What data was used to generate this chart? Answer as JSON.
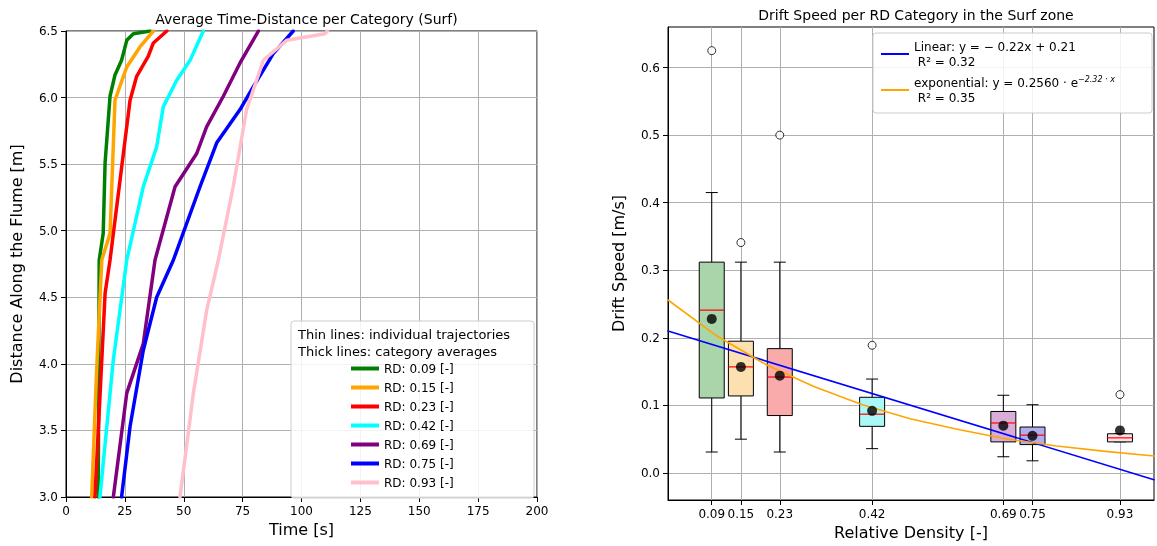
{
  "chart_data": [
    {
      "type": "line",
      "title": "Average Time-Distance per Category (Surf)",
      "xlabel": "Time [s]",
      "ylabel": "Distance Along the Flume [m]",
      "legend_title": "Thin lines: individual trajectories\nThick lines: category averages",
      "legend": "bottom right",
      "grid": true,
      "xlim": [
        0,
        200
      ],
      "xticks": [
        0,
        25,
        50,
        75,
        100,
        125,
        150,
        175,
        200
      ],
      "ylim": [
        3.0,
        6.5
      ],
      "yticks": [
        {
          "value": 3,
          "label": "3.0"
        },
        {
          "value": 3.5,
          "label": "3.5"
        },
        {
          "value": 4,
          "label": "4.0"
        },
        {
          "value": 4.5,
          "label": "4.5"
        },
        {
          "value": 5,
          "label": "5.0"
        },
        {
          "value": 5.5,
          "label": "5.5"
        },
        {
          "value": 6,
          "label": "6.0"
        },
        {
          "value": 6.5,
          "label": "6.5"
        }
      ],
      "series": [
        {
          "name": "RD: 0.09 [-]",
          "color": "#008000",
          "x": [
            13.7,
            14.1,
            15.8,
            16.6,
            18.7,
            20.8,
            23.6,
            25.8,
            28.6,
            35.7
          ],
          "values": [
            3.0,
            4.78,
            4.98,
            5.51,
            6.01,
            6.17,
            6.28,
            6.43,
            6.48,
            6.5
          ]
        },
        {
          "name": "RD: 0.15 [-]",
          "color": "#ffa500",
          "x": [
            10.9,
            13.0,
            15.2,
            18.7,
            20.8,
            25.8,
            31.4,
            37.1
          ],
          "values": [
            3.0,
            3.95,
            4.78,
            4.98,
            5.98,
            6.23,
            6.38,
            6.5
          ]
        },
        {
          "name": "RD: 0.23 [-]",
          "color": "#ff0000",
          "x": [
            12.3,
            16.6,
            18.7,
            27.2,
            30.0,
            34.9,
            37.1,
            42.8
          ],
          "values": [
            3.0,
            4.53,
            4.78,
            5.98,
            6.16,
            6.31,
            6.41,
            6.5
          ]
        },
        {
          "name": "RD: 0.42 [-]",
          "color": "#00ffff",
          "x": [
            14.4,
            20.1,
            25.8,
            32.8,
            38.5,
            41.3,
            47.0,
            52.7,
            58.3
          ],
          "values": [
            3.0,
            4.03,
            4.78,
            5.33,
            5.63,
            5.93,
            6.13,
            6.28,
            6.5
          ]
        },
        {
          "name": "RD: 0.69 [-]",
          "color": "#800080",
          "x": [
            20.1,
            25.8,
            32.8,
            37.8,
            46.3,
            55.5,
            59.7,
            66.8,
            73.9,
            81.7
          ],
          "values": [
            3.0,
            3.78,
            4.15,
            4.78,
            5.33,
            5.58,
            5.78,
            6.01,
            6.26,
            6.5
          ]
        },
        {
          "name": "RD: 0.75 [-]",
          "color": "#0000ff",
          "x": [
            23.6,
            27.2,
            32.8,
            38.5,
            45.6,
            56.9,
            64.0,
            73.9,
            79.5,
            88.0,
            96.5
          ],
          "values": [
            3.0,
            3.53,
            4.1,
            4.5,
            4.78,
            5.33,
            5.66,
            5.91,
            6.08,
            6.33,
            6.5
          ]
        },
        {
          "name": "RD: 0.93 [-]",
          "color": "#ffc0cb",
          "x": [
            48.4,
            54.1,
            59.7,
            64.7,
            71.0,
            76.7,
            83.8,
            93.7,
            110,
            111
          ],
          "values": [
            3.0,
            3.78,
            4.4,
            4.78,
            5.33,
            5.91,
            6.28,
            6.43,
            6.48,
            6.5
          ]
        }
      ]
    },
    {
      "type": "box",
      "title": "Drift Speed per RD Category in the Surf zone",
      "xlabel": "Relative Density [-]",
      "ylabel": "Drift Speed [m/s]",
      "legend": "top right",
      "grid": true,
      "xlim": [
        0,
        1.0
      ],
      "xticks": [
        0.09,
        0.15,
        0.23,
        0.42,
        0.69,
        0.75,
        0.93
      ],
      "ylim": [
        -0.04,
        0.66
      ],
      "yticks": [
        {
          "value": 0,
          "label": "0.0"
        },
        {
          "value": 0.1,
          "label": "0.1"
        },
        {
          "value": 0.2,
          "label": "0.2"
        },
        {
          "value": 0.3,
          "label": "0.3"
        },
        {
          "value": 0.4,
          "label": "0.4"
        },
        {
          "value": 0.5,
          "label": "0.5"
        },
        {
          "value": 0.6,
          "label": "0.6"
        }
      ],
      "x": [
        0.09,
        0.15,
        0.23,
        0.42,
        0.69,
        0.75,
        0.93
      ],
      "colors": [
        "#aad4aa",
        "#fde0b0",
        "#f9aaaa",
        "#aaf7f7",
        "#d8aed8",
        "#aeaef0",
        "#fde2e6"
      ],
      "boxes": [
        {
          "low": 0.031,
          "q1": 0.111,
          "median": 0.241,
          "q3": 0.312,
          "high": 0.415,
          "mean": 0.228,
          "outliers": [
            0.625
          ]
        },
        {
          "low": 0.05,
          "q1": 0.114,
          "median": 0.157,
          "q3": 0.195,
          "high": 0.312,
          "mean": 0.157,
          "outliers": [
            0.341
          ]
        },
        {
          "low": 0.031,
          "q1": 0.085,
          "median": 0.142,
          "q3": 0.184,
          "high": 0.312,
          "mean": 0.144,
          "outliers": [
            0.5
          ]
        },
        {
          "low": 0.036,
          "q1": 0.069,
          "median": 0.087,
          "q3": 0.112,
          "high": 0.139,
          "mean": 0.092,
          "outliers": [
            0.189
          ]
        },
        {
          "low": 0.024,
          "q1": 0.046,
          "median": 0.074,
          "q3": 0.091,
          "high": 0.115,
          "mean": 0.07
        },
        {
          "low": 0.018,
          "q1": 0.042,
          "median": 0.056,
          "q3": 0.068,
          "high": 0.101,
          "mean": 0.055
        },
        {
          "low": 0.046,
          "q1": 0.046,
          "median": 0.052,
          "q3": 0.058,
          "high": 0.058,
          "mean": 0.063,
          "outliers": [
            0.116
          ]
        }
      ],
      "series": [
        {
          "type": "line",
          "name": "Linear: y = − 0.22x + 0.21\n R² = 0.32",
          "color": "#0000ff",
          "x": [
            0,
            1.0
          ],
          "values": [
            0.21,
            -0.01
          ]
        },
        {
          "type": "line",
          "name": "exponential: y = 0.2560 · e$^{−2.32 · x}$\n R² = 0.35",
          "color": "#ffa500",
          "x": [
            0,
            0.1,
            0.2,
            0.3,
            0.4,
            0.5,
            0.6,
            0.7,
            0.8,
            0.9,
            1.0
          ],
          "values": [
            0.256,
            0.203,
            0.161,
            0.128,
            0.101,
            0.08,
            0.064,
            0.05,
            0.04,
            0.032,
            0.025
          ]
        }
      ]
    }
  ]
}
